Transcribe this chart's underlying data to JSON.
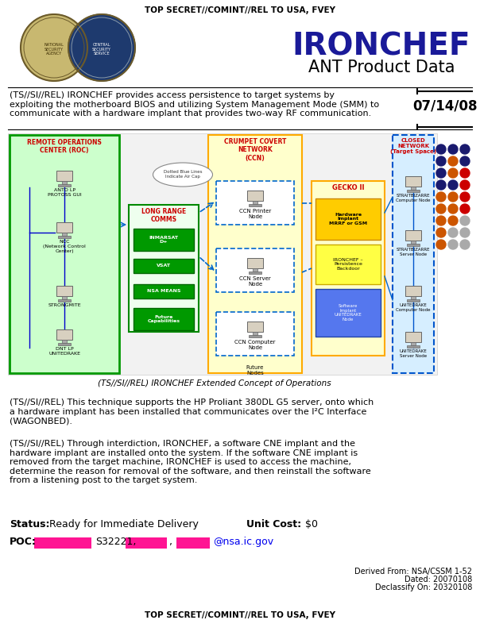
{
  "title_classification": "TOP SECRET//COMINT//REL TO USA, FVEY",
  "bottom_classification": "TOP SECRET//COMINT//REL TO USA, FVEY",
  "product_name": "IRONCHEF",
  "product_subtitle": "ANT Product Data",
  "date": "07/14/08",
  "description": "(TS//SI//REL) IRONCHEF provides access persistence to target systems by\nexploiting the motherboard BIOS and utilizing System Management Mode (SMM) to\ncommunicate with a hardware implant that provides two-way RF communication.",
  "diagram_caption": "(TS//SI//REL) IRONCHEF Extended Concept of Operations",
  "body_text1": "(TS//SI//REL) This technique supports the HP Proliant 380DL G5 server, onto which\na hardware implant has been installed that communicates over the I²C Interface\n(WAGONBED).",
  "body_text2": "(TS//SI//REL) Through interdiction, IRONCHEF, a software CNE implant and the\nhardware implant are installed onto the system. If the software CNE implant is\nremoved from the target machine, IRONCHEF is used to access the machine,\ndetermine the reason for removal of the software, and then reinstall the software\nfrom a listening post to the target system.",
  "status_label": "Status:",
  "status_value": " Ready for Immediate Delivery",
  "unit_cost_label": "Unit Cost:",
  "unit_cost_value": " $0",
  "poc_label": "POC:",
  "poc_email": "@nsa.ic.gov",
  "poc_s_number": "S32221,",
  "derived_from": "Derived From: NSA/CSSM 1-52",
  "dated": "Dated: 20070108",
  "declassify": "Declassify On: 20320108",
  "dot_rows": [
    [
      "#1a1a6e",
      "#1a1a6e",
      "#1a1a6e"
    ],
    [
      "#1a1a6e",
      "#cc5500",
      "#1a1a6e"
    ],
    [
      "#1a1a6e",
      "#cc5500",
      "#cc0000"
    ],
    [
      "#1a1a6e",
      "#1a1a6e",
      "#cc0000"
    ],
    [
      "#cc5500",
      "#cc5500",
      "#cc0000"
    ],
    [
      "#cc5500",
      "#cc5500",
      "#cc0000"
    ],
    [
      "#cc5500",
      "#cc5500",
      "#aaaaaa"
    ],
    [
      "#cc5500",
      "#aaaaaa",
      "#aaaaaa"
    ],
    [
      "#cc5500",
      "#aaaaaa",
      "#aaaaaa"
    ]
  ]
}
